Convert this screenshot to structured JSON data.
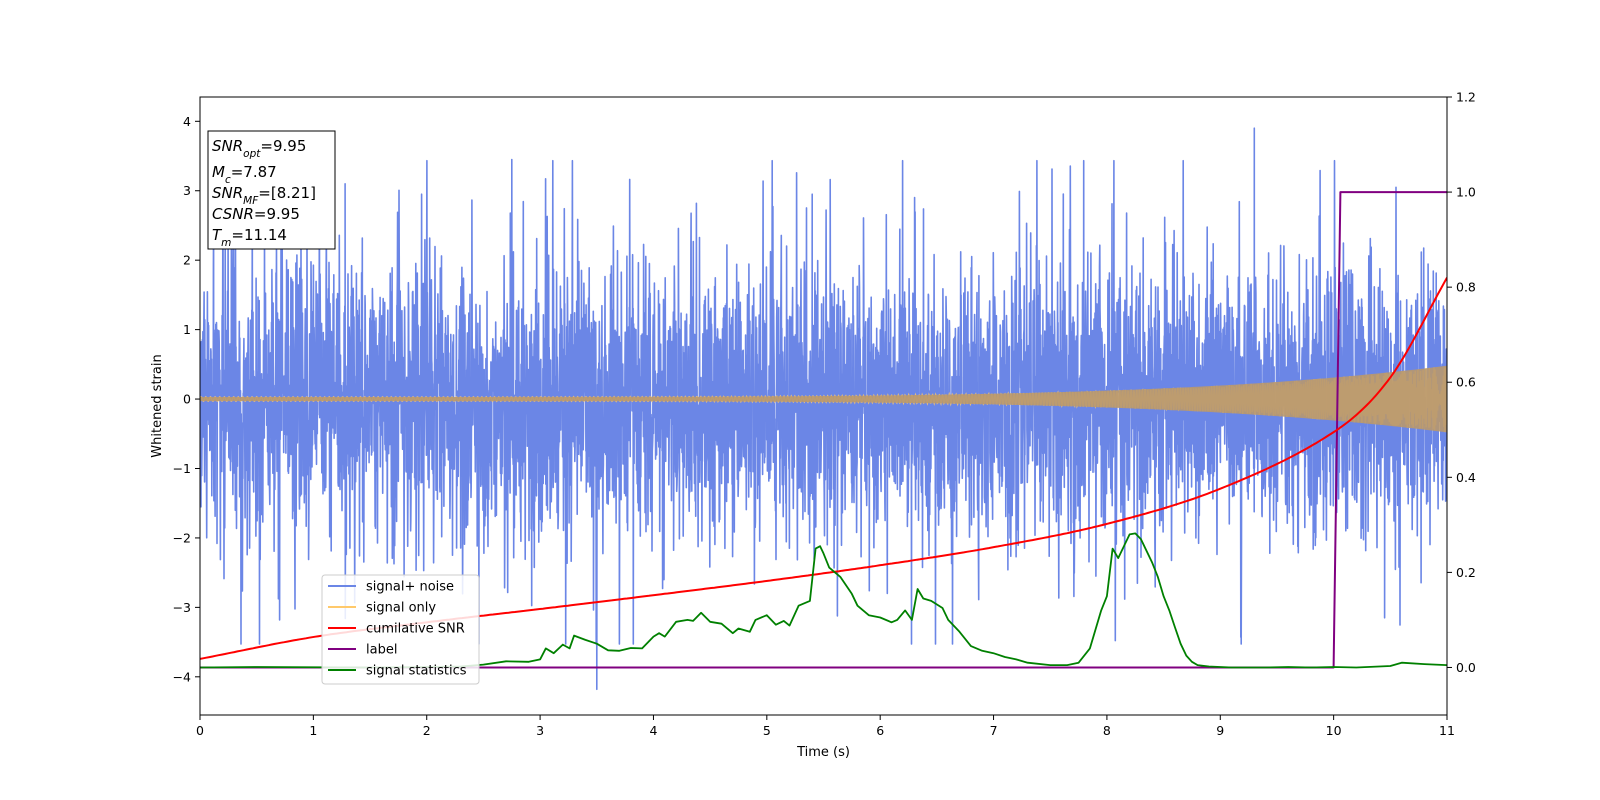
{
  "chart_data": {
    "type": "line",
    "title": "",
    "xlabel": "Time (s)",
    "ylabel": "Whitened strain",
    "y2label": "",
    "xlim": [
      0,
      11
    ],
    "ylim": [
      -4.55,
      4.35
    ],
    "y2lim": [
      -0.1,
      1.2
    ],
    "x_ticks": [
      0,
      1,
      2,
      3,
      4,
      5,
      6,
      7,
      8,
      9,
      10,
      11
    ],
    "y_ticks": [
      -4,
      -3,
      -2,
      -1,
      0,
      1,
      2,
      3,
      4
    ],
    "y2_ticks": [
      0.0,
      0.2,
      0.4,
      0.6,
      0.8,
      1.0,
      1.2
    ],
    "grid": false,
    "legend_position": "lower-left",
    "series": [
      {
        "name": "signal+ noise",
        "axis": "left",
        "color": "#6b86e6",
        "noise_band": {
          "typical_amplitude": 1.6,
          "peak_max": 3.9,
          "peak_min": -4.2
        },
        "notable_points": [
          [
            0.12,
            2.5
          ],
          [
            1.28,
            3.1
          ],
          [
            2.75,
            3.45
          ],
          [
            3.5,
            -4.18
          ],
          [
            5.4,
            2.95
          ],
          [
            9.3,
            3.9
          ],
          [
            10.45,
            -3.15
          ],
          [
            10.55,
            3.05
          ]
        ]
      },
      {
        "name": "signal only",
        "axis": "left",
        "color": "#ffc96b",
        "chirp": {
          "start_amplitude": 0.03,
          "end_amplitude": 0.48,
          "t_merge": 11.14
        }
      },
      {
        "name": "cumilative SNR",
        "axis": "right",
        "color": "#ff0000",
        "x": [
          0,
          1,
          2,
          3,
          4,
          5,
          6,
          7,
          8,
          9,
          10,
          10.5,
          11
        ],
        "y": [
          0.018,
          0.064,
          0.095,
          0.123,
          0.152,
          0.182,
          0.215,
          0.253,
          0.302,
          0.376,
          0.495,
          0.61,
          0.82
        ]
      },
      {
        "name": "label",
        "axis": "right",
        "color": "#800080",
        "x": [
          0,
          10.0,
          10.06,
          11
        ],
        "y": [
          0,
          0,
          1,
          1
        ]
      },
      {
        "name": "signal statistics",
        "axis": "right",
        "color": "#008000",
        "x": [
          0,
          0.5,
          1.5,
          2.0,
          2.3,
          2.5,
          2.7,
          2.9,
          3.0,
          3.05,
          3.12,
          3.2,
          3.26,
          3.3,
          3.4,
          3.5,
          3.6,
          3.7,
          3.8,
          3.9,
          4.0,
          4.05,
          4.1,
          4.2,
          4.3,
          4.35,
          4.42,
          4.5,
          4.6,
          4.7,
          4.75,
          4.85,
          4.9,
          5.0,
          5.08,
          5.15,
          5.2,
          5.28,
          5.38,
          5.43,
          5.47,
          5.5,
          5.55,
          5.65,
          5.75,
          5.8,
          5.9,
          6.0,
          6.1,
          6.15,
          6.22,
          6.28,
          6.33,
          6.38,
          6.45,
          6.55,
          6.6,
          6.7,
          6.8,
          6.9,
          7.0,
          7.1,
          7.2,
          7.3,
          7.5,
          7.65,
          7.75,
          7.85,
          7.95,
          8.0,
          8.05,
          8.1,
          8.2,
          8.25,
          8.3,
          8.4,
          8.45,
          8.5,
          8.55,
          8.6,
          8.65,
          8.7,
          8.75,
          8.8,
          8.9,
          9.1,
          9.4,
          9.6,
          9.8,
          10.0,
          10.2,
          10.3,
          10.5,
          10.6,
          10.8,
          11.0
        ],
        "y": [
          0.0,
          0.001,
          0.0,
          0.001,
          0.002,
          0.006,
          0.013,
          0.012,
          0.017,
          0.04,
          0.03,
          0.048,
          0.04,
          0.067,
          0.058,
          0.05,
          0.036,
          0.035,
          0.041,
          0.04,
          0.065,
          0.072,
          0.065,
          0.096,
          0.1,
          0.098,
          0.115,
          0.096,
          0.092,
          0.072,
          0.082,
          0.075,
          0.1,
          0.11,
          0.09,
          0.098,
          0.088,
          0.13,
          0.14,
          0.25,
          0.255,
          0.24,
          0.21,
          0.19,
          0.155,
          0.13,
          0.11,
          0.105,
          0.095,
          0.1,
          0.12,
          0.1,
          0.165,
          0.145,
          0.14,
          0.125,
          0.1,
          0.075,
          0.045,
          0.035,
          0.03,
          0.022,
          0.017,
          0.01,
          0.005,
          0.005,
          0.01,
          0.04,
          0.12,
          0.15,
          0.25,
          0.23,
          0.28,
          0.282,
          0.27,
          0.22,
          0.19,
          0.15,
          0.12,
          0.085,
          0.05,
          0.025,
          0.012,
          0.005,
          0.002,
          0.0,
          0.0,
          0.001,
          0.0,
          0.001,
          0.0,
          0.001,
          0.003,
          0.01,
          0.007,
          0.005
        ]
      }
    ],
    "annotation_box": {
      "lines": [
        {
          "var": "SNR",
          "sub": "opt",
          "value": "=9.95"
        },
        {
          "var": "M",
          "sub": "c",
          "value": "=7.87"
        },
        {
          "var": "SNR",
          "sub": "MF",
          "value": "=[8.21]"
        },
        {
          "var": "CSNR",
          "sub": "",
          "value": "=9.95"
        },
        {
          "var": "T",
          "sub": "m",
          "value": "=11.14"
        }
      ]
    }
  }
}
